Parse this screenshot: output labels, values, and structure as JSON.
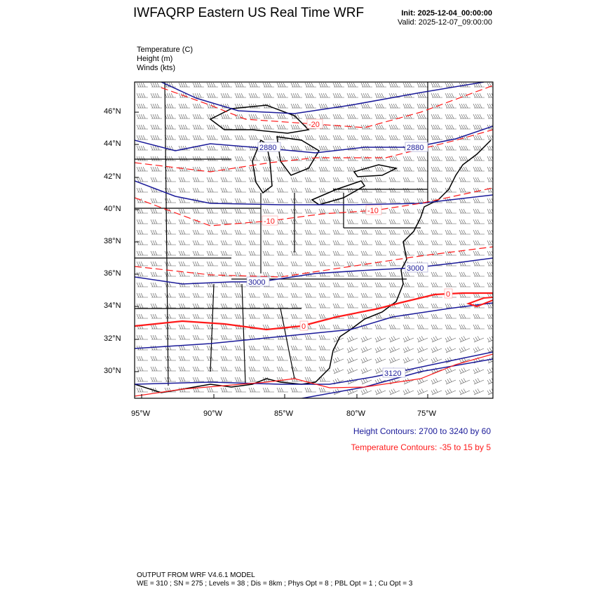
{
  "header": {
    "title": "IWFAQRP Eastern US Real Time WRF",
    "init": "Init: 2025-12-04_00:00:00",
    "valid": "Valid: 2025-12-07_09:00:00"
  },
  "fields": [
    {
      "label": "Temperature   (C)"
    },
    {
      "label": "Height   (m)"
    },
    {
      "label": "Winds   (kts)"
    }
  ],
  "axes": {
    "lon_ticks": [
      "95°W",
      "90°W",
      "85°W",
      "80°W",
      "75°W"
    ],
    "lat_ticks": [
      "46°N",
      "44°N",
      "42°N",
      "40°N",
      "38°N",
      "36°N",
      "34°N",
      "32°N",
      "30°N"
    ]
  },
  "contour_labels": {
    "height": [
      "2880",
      "2880",
      "3000",
      "3000",
      "3120"
    ],
    "temperature": [
      "-20",
      "-10",
      "-10",
      "0",
      "0"
    ]
  },
  "legend": {
    "height": "Height Contours: 2700 to 3240 by 60",
    "temperature": "Temperature Contours: -35 to 15 by 5"
  },
  "colors": {
    "height": "#1a1a99",
    "temperature": "#ff1a1a"
  },
  "footer": {
    "line1": "OUTPUT FROM WRF V4.6.1 MODEL",
    "line2": "WE = 310 ; SN = 275 ; Levels = 38 ; Dis = 8km ; Phys Opt = 8 ; PBL Opt = 1 ; Cu Opt = 3"
  }
}
